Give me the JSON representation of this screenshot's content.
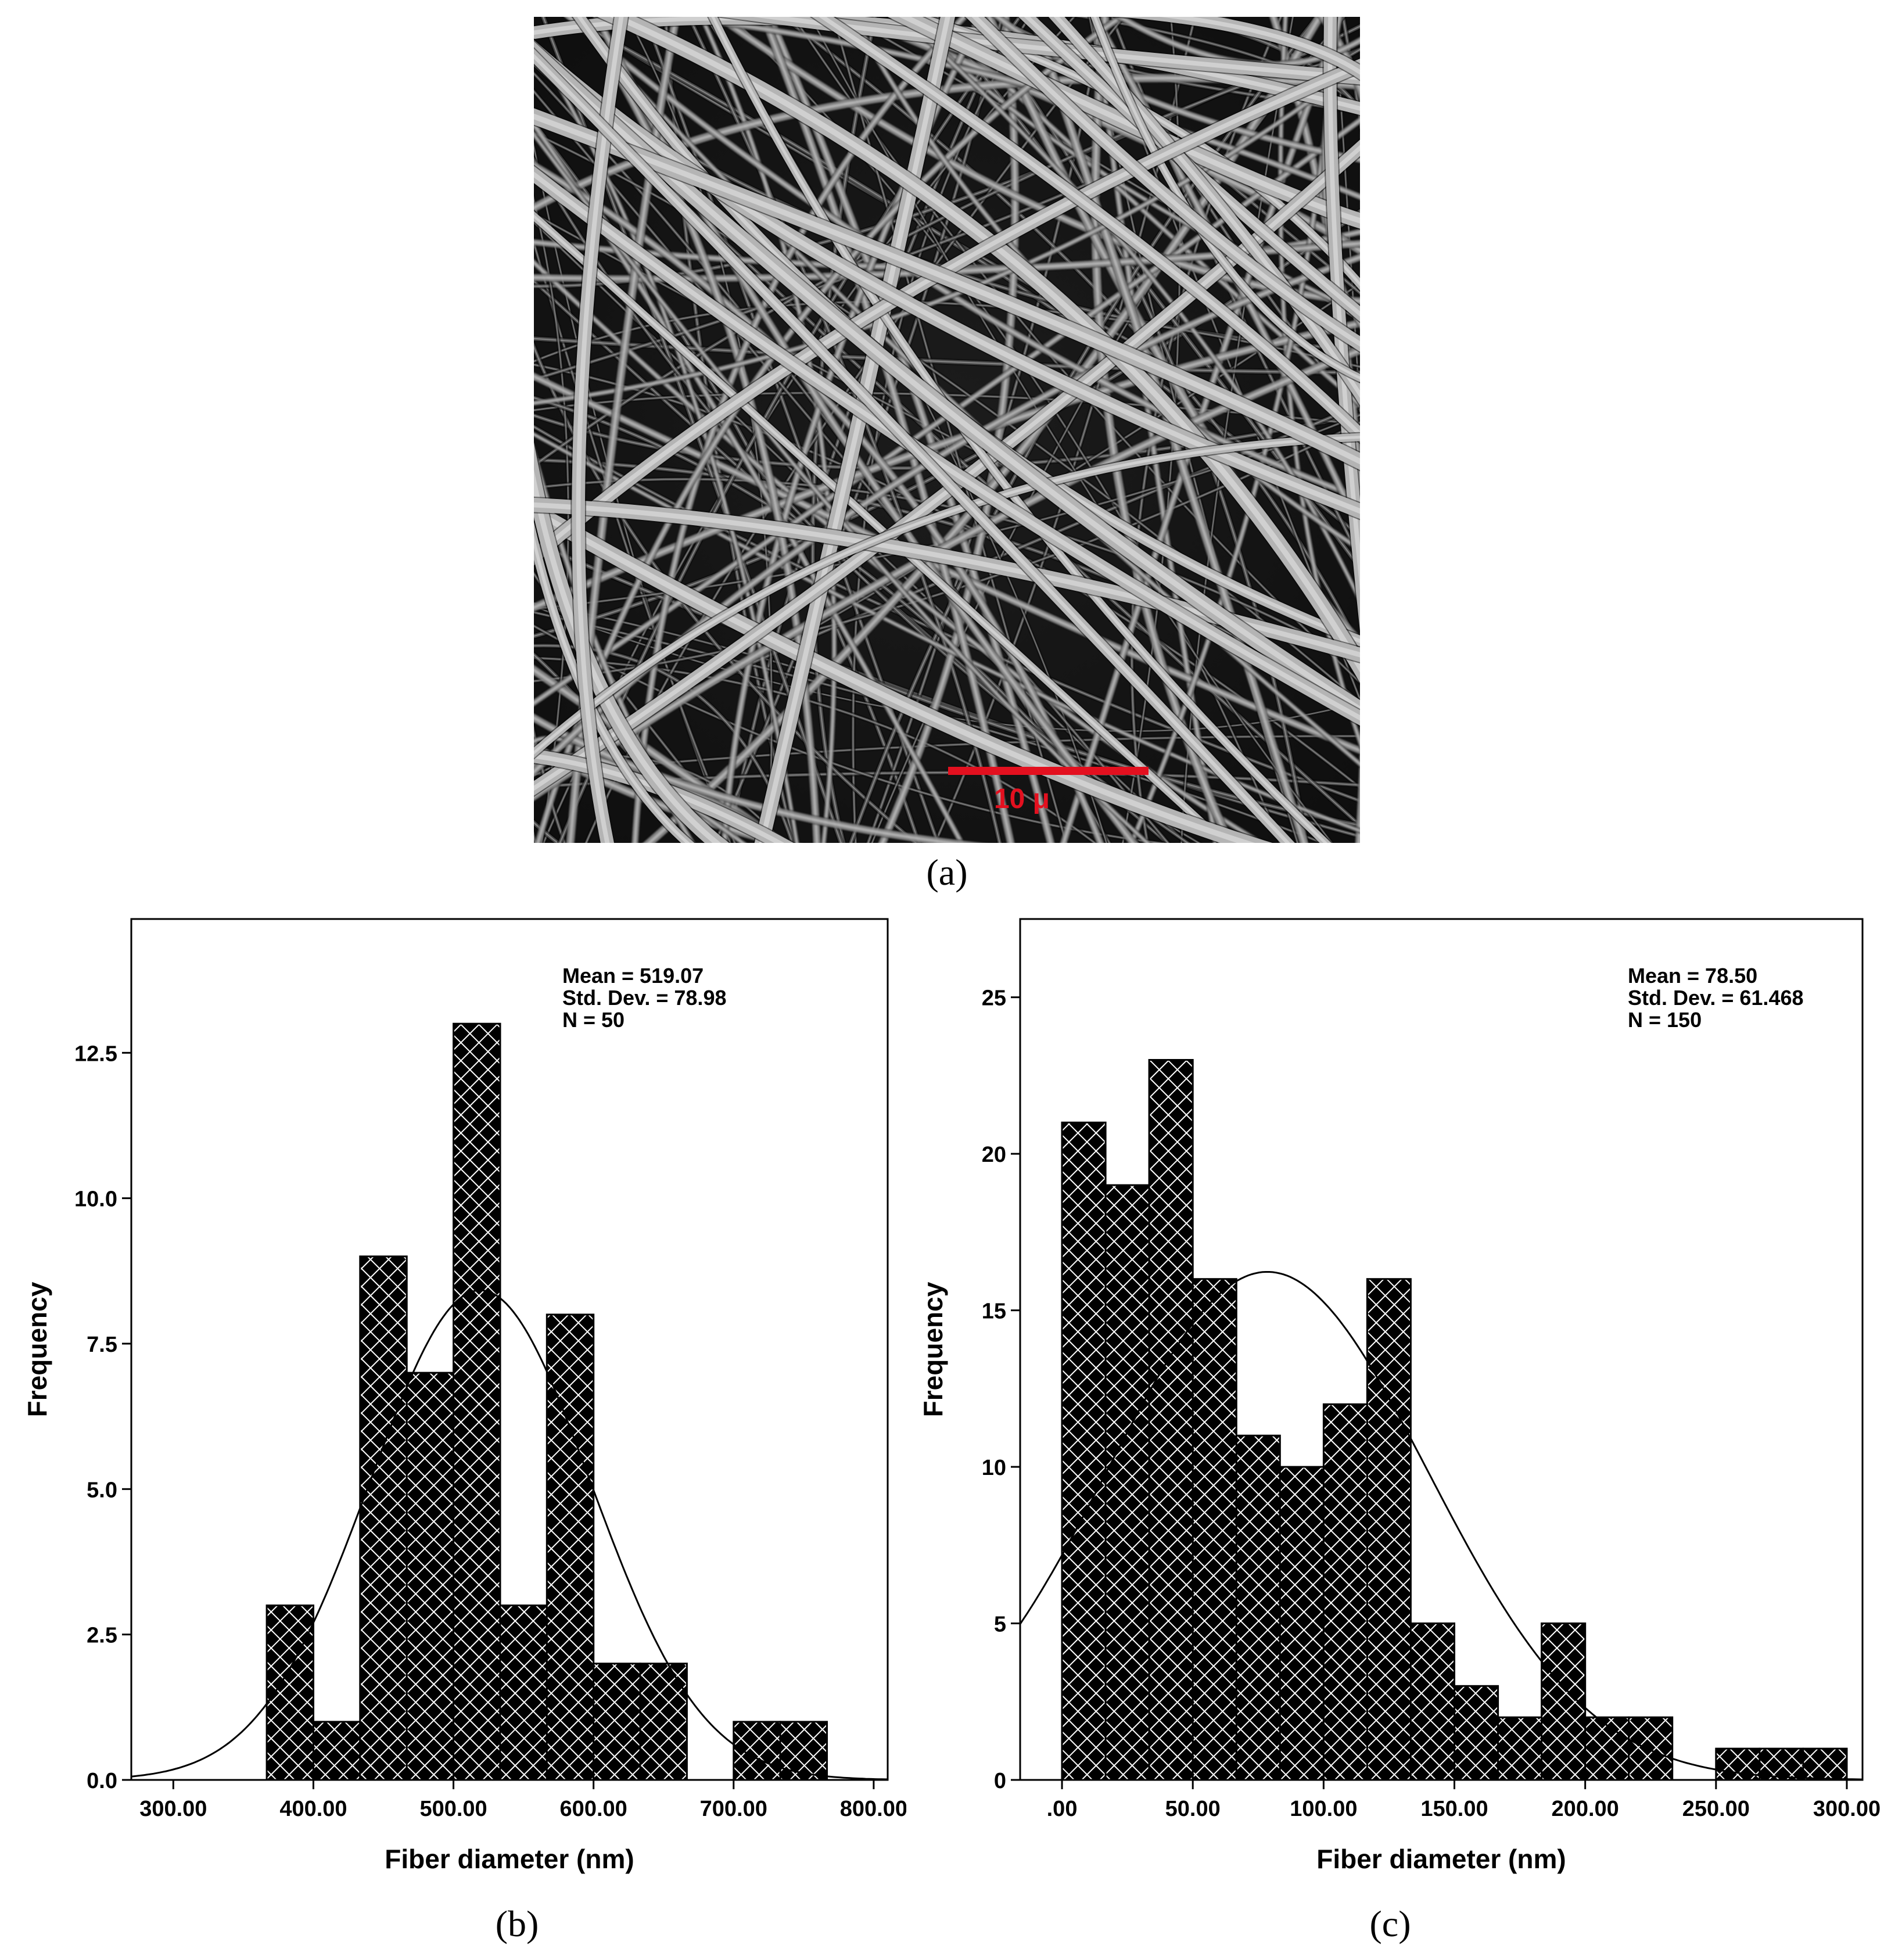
{
  "panels": {
    "a": {
      "label": "(a)",
      "scale_bar_label": "10 μ",
      "scale_bar_color": "#e3101f"
    },
    "b": {
      "label": "(b)"
    },
    "c": {
      "label": "(c)"
    }
  },
  "chart_data": [
    {
      "id": "b",
      "type": "bar",
      "title": "",
      "xlabel": "Fiber diameter (nm)",
      "ylabel": "Frequency",
      "xlim": [
        270,
        810
      ],
      "ylim": [
        0,
        14.8
      ],
      "x_ticks": [
        300,
        400,
        500,
        600,
        700,
        800
      ],
      "x_tick_labels": [
        "300.00",
        "400.00",
        "500.00",
        "600.00",
        "700.00",
        "800.00"
      ],
      "y_ticks": [
        0,
        2.5,
        5,
        7.5,
        10,
        12.5
      ],
      "y_tick_labels": [
        "0.0",
        "2.5",
        "5.0",
        "7.5",
        "10.0",
        "12.5"
      ],
      "bin_edges": [
        366.67,
        400,
        433.33,
        466.67,
        500,
        533.33,
        566.67,
        600,
        633.33,
        666.67,
        700,
        733.33,
        766.67
      ],
      "values": [
        3,
        1,
        9,
        7,
        13,
        3,
        8,
        2,
        2,
        0,
        1,
        1
      ],
      "curve": {
        "type": "normal",
        "mean": 519.07,
        "sd": 78.98,
        "n": 50,
        "bin_width": 33.33
      },
      "annotations": [
        "Mean = 519.07",
        "Std. Dev. = 78.98",
        "N = 50"
      ]
    },
    {
      "id": "c",
      "type": "bar",
      "title": "",
      "xlabel": "Fiber diameter (nm)",
      "ylabel": "Frequency",
      "xlim": [
        -16,
        306
      ],
      "ylim": [
        0,
        27.5
      ],
      "x_ticks": [
        0,
        50,
        100,
        150,
        200,
        250,
        300
      ],
      "x_tick_labels": [
        ".00",
        "50.00",
        "100.00",
        "150.00",
        "200.00",
        "250.00",
        "300.00"
      ],
      "y_ticks": [
        0,
        5,
        10,
        15,
        20,
        25
      ],
      "y_tick_labels": [
        "0",
        "5",
        "10",
        "15",
        "20",
        "25"
      ],
      "bin_edges": [
        0,
        16.67,
        33.33,
        50,
        66.67,
        83.33,
        100,
        116.67,
        133.33,
        150,
        166.67,
        183.33,
        200,
        216.67,
        233.33,
        250,
        266.67,
        283.33,
        300
      ],
      "values": [
        21,
        19,
        23,
        16,
        11,
        10,
        12,
        16,
        5,
        3,
        2,
        5,
        2,
        2,
        0,
        1,
        1,
        1
      ],
      "curve": {
        "type": "normal",
        "mean": 78.5,
        "sd": 61.468,
        "n": 150,
        "bin_width": 16.67
      },
      "annotations": [
        "Mean = 78.50",
        "Std. Dev. = 61.468",
        "N = 150"
      ]
    }
  ]
}
